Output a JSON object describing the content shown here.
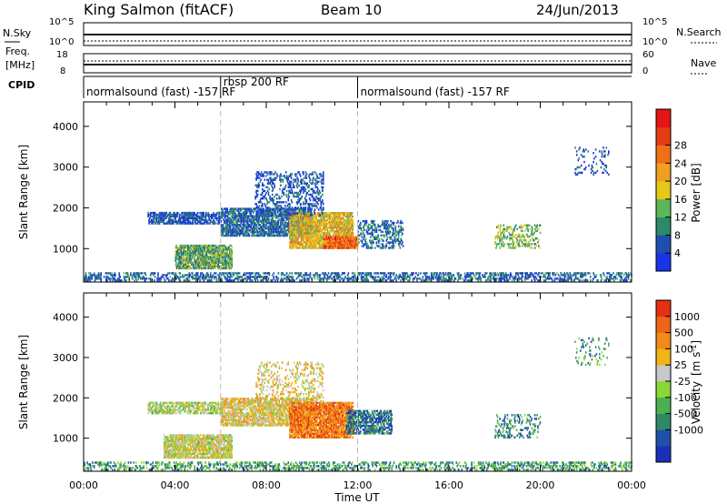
{
  "header": {
    "station": "King Salmon (fitACF)",
    "beam": "Beam 10",
    "date": "24/Jun/2013"
  },
  "summary_panels": {
    "nsky": {
      "label": "N.Sky",
      "ticks": [
        "10^5",
        "10^0"
      ]
    },
    "nsearch": {
      "label": "N.Search",
      "ticks": [
        "10^5",
        "10^0"
      ]
    },
    "freq": {
      "label_line1": "Freq.",
      "label_line2": "[MHz]",
      "ticks": [
        "18",
        "8"
      ]
    },
    "nave": {
      "label": "Nave",
      "ticks": [
        "60",
        "0"
      ]
    },
    "cpid": {
      "label": "CPID",
      "segments": [
        {
          "text": "normalsound (fast) -157 RF",
          "start_hour": 0.0
        },
        {
          "text": "rbsp 200 RF",
          "start_hour": 6.0
        },
        {
          "text": "normalsound (fast) -157 RF",
          "start_hour": 12.0
        }
      ]
    }
  },
  "chart_data": [
    {
      "type": "heatmap",
      "name": "power",
      "ylabel": "Slant Range [km]",
      "xlabel": "",
      "x_range_hours": [
        0,
        24
      ],
      "ylim": [
        180,
        4600
      ],
      "y_ticks": [
        "1000",
        "2000",
        "3000",
        "4000"
      ],
      "colorbar": {
        "label": "Power [dB]",
        "ticks": [
          "4",
          "8",
          "12",
          "16",
          "20",
          "24",
          "28"
        ],
        "colors": [
          "#1a33e6",
          "#1e4fb0",
          "#2a8a6a",
          "#5ab85a",
          "#e6c81a",
          "#f0a020",
          "#f07018",
          "#e63c14",
          "#e61414"
        ]
      },
      "regions": [
        {
          "t0": 0.0,
          "t1": 24.0,
          "r0": 200,
          "r1": 420,
          "level": 0.2,
          "density": 0.35
        },
        {
          "t0": 4.0,
          "t1": 6.5,
          "r0": 500,
          "r1": 1100,
          "level": 0.35,
          "density": 0.7
        },
        {
          "t0": 2.8,
          "t1": 6.0,
          "r0": 1600,
          "r1": 1900,
          "level": 0.15,
          "density": 0.55
        },
        {
          "t0": 6.0,
          "t1": 10.0,
          "r0": 1300,
          "r1": 2000,
          "level": 0.2,
          "density": 0.6
        },
        {
          "t0": 9.0,
          "t1": 11.8,
          "r0": 1000,
          "r1": 1900,
          "level": 0.55,
          "density": 0.7
        },
        {
          "t0": 10.5,
          "t1": 12.0,
          "r0": 1000,
          "r1": 1300,
          "level": 0.75,
          "density": 0.8
        },
        {
          "t0": 7.5,
          "t1": 10.5,
          "r0": 1800,
          "r1": 2900,
          "level": 0.15,
          "density": 0.25
        },
        {
          "t0": 12.0,
          "t1": 14.0,
          "r0": 1000,
          "r1": 1700,
          "level": 0.2,
          "density": 0.3
        },
        {
          "t0": 18.0,
          "t1": 20.0,
          "r0": 1000,
          "r1": 1600,
          "level": 0.4,
          "density": 0.25
        },
        {
          "t0": 21.5,
          "t1": 23.0,
          "r0": 2800,
          "r1": 3500,
          "level": 0.15,
          "density": 0.1
        }
      ]
    },
    {
      "type": "heatmap",
      "name": "velocity",
      "ylabel": "Slant Range [km]",
      "xlabel": "Time UT",
      "x_range_hours": [
        0,
        24
      ],
      "x_ticks": [
        "00:00",
        "04:00",
        "08:00",
        "12:00",
        "16:00",
        "20:00",
        "00:00"
      ],
      "ylim": [
        180,
        4600
      ],
      "y_ticks": [
        "1000",
        "2000",
        "3000",
        "4000"
      ],
      "colorbar": {
        "label": "Velocity",
        "label_unit": "[m s",
        "label_sup": "-1",
        "label_close": "]",
        "ticks": [
          "1000",
          "500",
          "100",
          "25",
          "-25",
          "-100",
          "-500",
          "-1000"
        ],
        "colors": [
          "#1a2fb8",
          "#1e50a8",
          "#2e8a66",
          "#4cb050",
          "#88d838",
          "#c8c8c8",
          "#f0b418",
          "#f08a18",
          "#ee6418",
          "#e63014"
        ]
      },
      "regions": [
        {
          "t0": 0.0,
          "t1": 24.0,
          "r0": 200,
          "r1": 420,
          "level": 0.3,
          "density": 0.3
        },
        {
          "t0": 3.5,
          "t1": 6.5,
          "r0": 500,
          "r1": 1100,
          "level": 0.55,
          "density": 0.7
        },
        {
          "t0": 2.8,
          "t1": 6.0,
          "r0": 1600,
          "r1": 1900,
          "level": 0.5,
          "density": 0.55
        },
        {
          "t0": 6.0,
          "t1": 10.0,
          "r0": 1300,
          "r1": 2000,
          "level": 0.6,
          "density": 0.6
        },
        {
          "t0": 9.0,
          "t1": 11.8,
          "r0": 1000,
          "r1": 1900,
          "level": 0.8,
          "density": 0.75
        },
        {
          "t0": 11.5,
          "t1": 13.5,
          "r0": 1100,
          "r1": 1700,
          "level": 0.2,
          "density": 0.5
        },
        {
          "t0": 7.5,
          "t1": 10.5,
          "r0": 1800,
          "r1": 2900,
          "level": 0.6,
          "density": 0.2
        },
        {
          "t0": 18.0,
          "t1": 20.0,
          "r0": 1000,
          "r1": 1600,
          "level": 0.25,
          "density": 0.2
        },
        {
          "t0": 21.5,
          "t1": 23.0,
          "r0": 2800,
          "r1": 3500,
          "level": 0.3,
          "density": 0.1
        }
      ]
    }
  ]
}
